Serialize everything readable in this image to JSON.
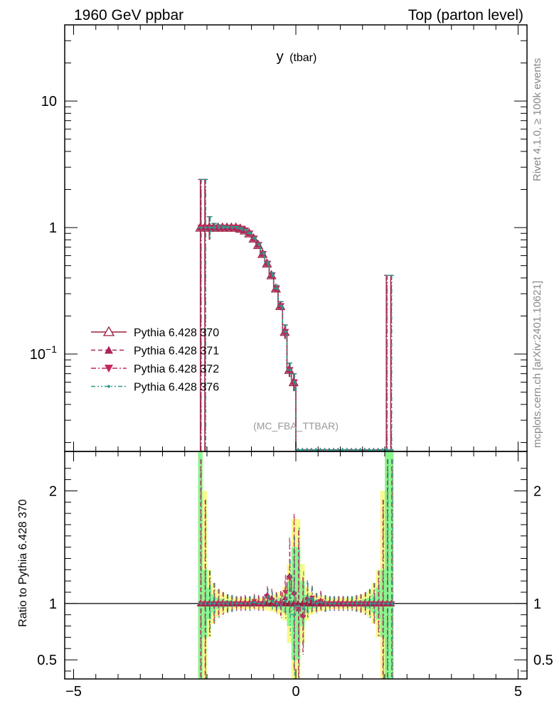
{
  "header": {
    "left": "1960 GeV ppbar",
    "right": "Top (parton level)",
    "side_top": "Rivet 4.1.0, ≥ 100k events",
    "side_bottom": "mcplots.cern.ch [arXiv:2401.10621]"
  },
  "chart_data": [
    {
      "type": "line",
      "title": "y",
      "title_suffix": "(tbar)",
      "watermark": "(MC_FBA_TTBAR)",
      "xlabel": "",
      "ylabel": "",
      "yscale": "log",
      "xlim": [
        -5.2,
        5.2
      ],
      "ylim": [
        0.017,
        40
      ],
      "x_ticks": [
        -5,
        0,
        5
      ],
      "x_tick_labels": [
        "−5",
        "0",
        "5"
      ],
      "y_tick_labels": [
        "10",
        "1",
        "10−1"
      ],
      "legend_position": "middle-left",
      "series": [
        {
          "name": "Pythia 6.428 370",
          "color": "#9b1e3c",
          "style": "solid",
          "marker": "triangle-up-open"
        },
        {
          "name": "Pythia 6.428 371",
          "color": "#ab2358",
          "style": "dashed",
          "marker": "triangle-up-filled"
        },
        {
          "name": "Pythia 6.428 372",
          "color": "#c3285c",
          "style": "dashdot",
          "marker": "triangle-down-filled"
        },
        {
          "name": "Pythia 6.428 376",
          "color": "#2a9a8a",
          "style": "dashdotdot",
          "marker": "dot"
        }
      ],
      "x": [
        -2.15,
        -2.05,
        -1.95,
        -1.85,
        -1.75,
        -1.65,
        -1.55,
        -1.45,
        -1.35,
        -1.25,
        -1.15,
        -1.05,
        -0.95,
        -0.85,
        -0.75,
        -0.65,
        -0.55,
        -0.45,
        -0.35,
        -0.25,
        -0.15,
        -0.05
      ],
      "values": [
        1.0,
        1.0,
        1.0,
        1.0,
        1.0,
        1.0,
        1.0,
        1.0,
        1.0,
        0.98,
        0.95,
        0.9,
        0.82,
        0.73,
        0.62,
        0.52,
        0.42,
        0.33,
        0.24,
        0.15,
        0.075,
        0.06
      ],
      "errors_up": [
        1.4,
        1.4,
        0.22,
        0.08,
        0.05,
        0.03,
        0.02,
        0.02,
        0.02,
        0.02,
        0.02,
        0.02,
        0.02,
        0.02,
        0.02,
        0.02,
        0.02,
        0.02,
        0.02,
        0.02,
        0.01,
        0.01
      ],
      "floor_value": 0.0175,
      "floor_range": [
        0.0,
        2.2
      ],
      "edge_spikes": [
        {
          "x": 2.05,
          "y": 0.42
        },
        {
          "x": 2.15,
          "y": 0.42
        }
      ]
    },
    {
      "type": "line",
      "ylabel": "Ratio to Pythia 6.428 370",
      "xlim": [
        -5.2,
        5.2
      ],
      "ylim": [
        0.33,
        2.35
      ],
      "y_ticks": [
        0.5,
        1,
        2
      ],
      "y_tick_labels": [
        "0.5",
        "1",
        "2"
      ],
      "reference": 1.0,
      "ratio_x": [
        -2.15,
        -2.05,
        -1.95,
        -1.85,
        -1.75,
        -1.65,
        -1.55,
        -1.45,
        -1.35,
        -1.25,
        -1.15,
        -1.05,
        -0.95,
        -0.85,
        -0.75,
        -0.65,
        -0.55,
        -0.45,
        -0.35,
        -0.25,
        -0.15,
        -0.05,
        0.05,
        0.15,
        0.25,
        0.35,
        0.45,
        0.55,
        0.65,
        0.75,
        0.85,
        0.95,
        1.05,
        1.15,
        1.25,
        1.35,
        1.45,
        1.55,
        1.65,
        1.75,
        1.85,
        1.95,
        2.05,
        2.15
      ],
      "ratio_series": [
        {
          "name": "Pythia 6.428 371",
          "values": [
            1.0,
            1.0,
            1.0,
            1.0,
            1.0,
            1.0,
            1.0,
            1.0,
            1.0,
            1.0,
            1.01,
            1.0,
            1.0,
            1.01,
            1.0,
            1.08,
            1.05,
            1.01,
            1.0,
            1.05,
            1.25,
            1.1,
            0.95,
            0.9,
            1.05,
            1.03,
            1.0,
            1.03,
            1.0,
            1.0,
            1.0,
            1.0,
            1.0,
            1.0,
            1.0,
            1.0,
            1.0,
            1.0,
            1.0,
            1.0,
            1.0,
            1.0,
            1.0,
            1.0
          ]
        },
        {
          "name": "Pythia 6.428 372",
          "values": [
            1.0,
            1.0,
            1.0,
            1.0,
            1.0,
            1.0,
            1.0,
            1.0,
            1.0,
            1.0,
            1.0,
            1.0,
            1.02,
            1.0,
            1.0,
            1.05,
            1.03,
            1.0,
            1.0,
            1.1,
            1.22,
            1.08,
            0.95,
            0.88,
            1.03,
            1.05,
            1.0,
            1.02,
            1.0,
            1.0,
            1.0,
            1.0,
            1.0,
            1.0,
            1.0,
            1.0,
            1.0,
            1.0,
            1.0,
            1.0,
            1.0,
            1.0,
            1.0,
            1.0
          ]
        },
        {
          "name": "Pythia 6.428 376",
          "values": [
            1.0,
            1.0,
            1.0,
            1.0,
            1.0,
            1.0,
            1.0,
            1.0,
            1.0,
            1.0,
            1.0,
            1.0,
            1.01,
            1.0,
            1.0,
            1.06,
            1.02,
            1.0,
            0.98,
            1.02,
            1.05,
            0.9,
            0.98,
            0.95,
            1.03,
            1.04,
            1.0,
            1.01,
            1.0,
            1.0,
            1.0,
            1.0,
            1.0,
            1.0,
            1.0,
            1.0,
            1.0,
            1.0,
            1.0,
            1.0,
            1.0,
            1.0,
            1.0,
            1.0
          ]
        }
      ],
      "band_inner": [
        2.4,
        1.3,
        1.14,
        1.08,
        1.05,
        1.04,
        1.03,
        1.03,
        1.02,
        1.02,
        1.02,
        1.02,
        1.02,
        1.02,
        1.02,
        1.03,
        1.03,
        1.04,
        1.05,
        1.08,
        1.2,
        1.5,
        1.5,
        1.2,
        1.08,
        1.05,
        1.04,
        1.03,
        1.03,
        1.02,
        1.02,
        1.02,
        1.02,
        1.02,
        1.02,
        1.03,
        1.03,
        1.04,
        1.05,
        1.08,
        1.14,
        1.3,
        2.4,
        2.4
      ],
      "band_outer": [
        2.4,
        2.0,
        1.3,
        1.18,
        1.12,
        1.09,
        1.07,
        1.06,
        1.05,
        1.05,
        1.05,
        1.05,
        1.05,
        1.05,
        1.05,
        1.06,
        1.07,
        1.08,
        1.1,
        1.15,
        1.35,
        1.75,
        1.75,
        1.35,
        1.15,
        1.1,
        1.08,
        1.07,
        1.06,
        1.05,
        1.05,
        1.05,
        1.05,
        1.05,
        1.05,
        1.06,
        1.07,
        1.09,
        1.12,
        1.18,
        1.3,
        2.0,
        2.4,
        2.4
      ],
      "band_colors": {
        "inner": "#8cf58c",
        "outer": "#fafa8c"
      }
    }
  ]
}
